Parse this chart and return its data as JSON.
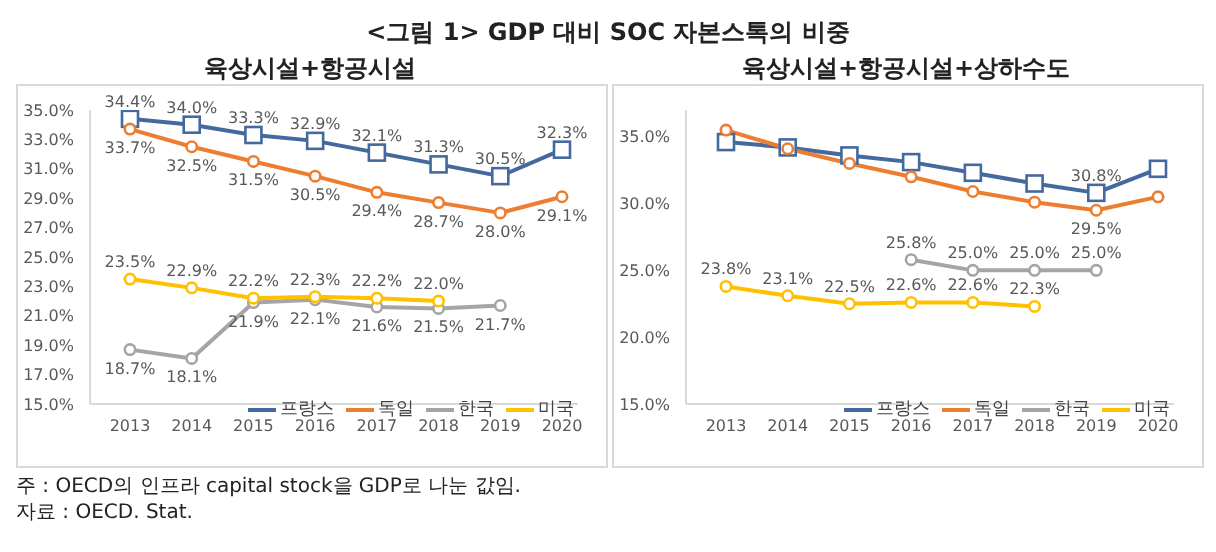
{
  "chart_data": [
    {
      "type": "line",
      "title": "육상시설+항공시설",
      "annotations": [
        "<그림 1> GDP 대비 SOC 자본스톡의 비중",
        "주 : OECD의 인프라 capital stock을 GDP로 나눈 값임.",
        "자료 : OECD. Stat."
      ],
      "categories": [
        "2013",
        "2014",
        "2015",
        "2016",
        "2017",
        "2018",
        "2019",
        "2020"
      ],
      "ylim": [
        15,
        35
      ],
      "yticks": [
        {
          "value": 15,
          "label": "15.0%"
        },
        {
          "value": 17,
          "label": "17.0%"
        },
        {
          "value": 19,
          "label": "19.0%"
        },
        {
          "value": 21,
          "label": "21.0%"
        },
        {
          "value": 23,
          "label": "23.0%"
        },
        {
          "value": 25,
          "label": "25.0%"
        },
        {
          "value": 27,
          "label": "27.0%"
        },
        {
          "value": 29,
          "label": "29.0%"
        },
        {
          "value": 31,
          "label": "31.0%"
        },
        {
          "value": 33,
          "label": "33.0%"
        },
        {
          "value": 35,
          "label": "35.0%"
        }
      ],
      "legend": "bottom right",
      "series": [
        {
          "name": "프랑스",
          "color": "#44699e",
          "marker": "square",
          "values": [
            34.4,
            34.0,
            33.3,
            32.9,
            32.1,
            31.3,
            30.5,
            32.3
          ],
          "value_labels": [
            "34.4%",
            "34.0%",
            "33.3%",
            "32.9%",
            "32.1%",
            "31.3%",
            "30.5%",
            "32.3%"
          ]
        },
        {
          "name": "독일",
          "color": "#ed7d31",
          "marker": "circle",
          "values": [
            33.7,
            32.5,
            31.5,
            30.5,
            29.4,
            28.7,
            28.0,
            29.1
          ],
          "value_labels": [
            "33.7%",
            "32.5%",
            "31.5%",
            "30.5%",
            "29.4%",
            "28.7%",
            "28.0%",
            "29.1%"
          ]
        },
        {
          "name": "한국",
          "color": "#a5a5a5",
          "marker": "circle",
          "values": [
            18.7,
            18.1,
            21.9,
            22.1,
            21.6,
            21.5,
            21.7,
            null
          ],
          "value_labels": [
            "18.7%",
            "18.1%",
            "21.9%",
            "22.1%",
            "21.6%",
            "21.5%",
            "21.7%",
            null
          ]
        },
        {
          "name": "미국",
          "color": "#ffc000",
          "marker": "circle",
          "values": [
            23.5,
            22.9,
            22.2,
            22.3,
            22.2,
            22.0,
            null,
            null
          ],
          "value_labels": [
            "23.5%",
            "22.9%",
            "22.2%",
            "22.3%",
            "22.2%",
            "22.0%",
            null,
            null
          ]
        }
      ]
    },
    {
      "type": "line",
      "title": "육상시설+항공시설+상하수도",
      "categories": [
        "2013",
        "2014",
        "2015",
        "2016",
        "2017",
        "2018",
        "2019",
        "2020"
      ],
      "ylim": [
        15,
        37
      ],
      "yticks": [
        {
          "value": 15,
          "label": "15.0%"
        },
        {
          "value": 20,
          "label": "20.0%"
        },
        {
          "value": 25,
          "label": "25.0%"
        },
        {
          "value": 30,
          "label": "30.0%"
        },
        {
          "value": 35,
          "label": "35.0%"
        }
      ],
      "legend": "bottom right",
      "series": [
        {
          "name": "프랑스",
          "color": "#44699e",
          "marker": "square",
          "values": [
            34.6,
            34.2,
            33.6,
            33.1,
            32.3,
            31.5,
            30.8,
            32.6
          ],
          "value_labels": [
            null,
            null,
            null,
            null,
            null,
            null,
            "30.8%",
            null
          ]
        },
        {
          "name": "독일",
          "color": "#ed7d31",
          "marker": "circle",
          "values": [
            35.5,
            34.1,
            33.0,
            32.0,
            30.9,
            30.1,
            29.5,
            30.5
          ],
          "value_labels": [
            null,
            null,
            null,
            null,
            null,
            null,
            "29.5%",
            null
          ]
        },
        {
          "name": "한국",
          "color": "#a5a5a5",
          "marker": "circle",
          "values": [
            null,
            null,
            null,
            25.8,
            25.0,
            25.0,
            25.0,
            null
          ],
          "value_labels": [
            null,
            null,
            null,
            "25.8%",
            "25.0%",
            "25.0%",
            "25.0%",
            null
          ]
        },
        {
          "name": "미국",
          "color": "#ffc000",
          "marker": "circle",
          "values": [
            23.8,
            23.1,
            22.5,
            22.6,
            22.6,
            22.3,
            null,
            null
          ],
          "value_labels": [
            "23.8%",
            "23.1%",
            "22.5%",
            "22.6%",
            "22.6%",
            "22.3%",
            null,
            null
          ]
        }
      ]
    }
  ]
}
